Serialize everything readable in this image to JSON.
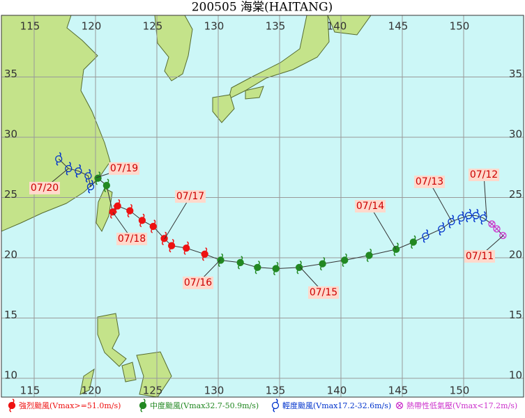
{
  "title": "200505 海棠(HAITANG)",
  "lon_ticks": [
    115,
    120,
    125,
    130,
    135,
    140,
    145,
    150
  ],
  "lat_ticks": [
    10,
    15,
    20,
    25,
    30,
    35
  ],
  "track": [
    {
      "lon": 153.2,
      "lat": 21.85,
      "color": "#cc33cc"
    },
    {
      "lon": 152.7,
      "lat": 22.4,
      "color": "#cc33cc"
    },
    {
      "lon": 152.3,
      "lat": 22.8,
      "color": "#cc33cc"
    },
    {
      "lon": 151.6,
      "lat": 23.3,
      "color": "#0033cc"
    },
    {
      "lon": 151.0,
      "lat": 23.5,
      "color": "#0033cc"
    },
    {
      "lon": 150.4,
      "lat": 23.5,
      "color": "#0033cc"
    },
    {
      "lon": 149.8,
      "lat": 23.3,
      "color": "#0033cc"
    },
    {
      "lon": 149.0,
      "lat": 23.0,
      "color": "#0033cc"
    },
    {
      "lon": 148.2,
      "lat": 22.4,
      "color": "#0033cc"
    },
    {
      "lon": 146.9,
      "lat": 21.8,
      "color": "#0033cc"
    },
    {
      "lon": 145.9,
      "lat": 21.3,
      "color": "#228822"
    },
    {
      "lon": 144.5,
      "lat": 20.7,
      "color": "#228822"
    },
    {
      "lon": 142.3,
      "lat": 20.2,
      "color": "#228822"
    },
    {
      "lon": 140.3,
      "lat": 19.8,
      "color": "#228822"
    },
    {
      "lon": 138.5,
      "lat": 19.5,
      "color": "#228822"
    },
    {
      "lon": 136.6,
      "lat": 19.2,
      "color": "#228822"
    },
    {
      "lon": 134.7,
      "lat": 19.1,
      "color": "#228822"
    },
    {
      "lon": 133.2,
      "lat": 19.2,
      "color": "#228822"
    },
    {
      "lon": 131.8,
      "lat": 19.6,
      "color": "#228822"
    },
    {
      "lon": 130.2,
      "lat": 19.8,
      "color": "#228822"
    },
    {
      "lon": 128.9,
      "lat": 20.3,
      "color": "#ee1111"
    },
    {
      "lon": 127.4,
      "lat": 20.8,
      "color": "#ee1111"
    },
    {
      "lon": 126.2,
      "lat": 21.0,
      "color": "#ee1111"
    },
    {
      "lon": 125.6,
      "lat": 21.6,
      "color": "#ee1111"
    },
    {
      "lon": 124.7,
      "lat": 22.6,
      "color": "#ee1111"
    },
    {
      "lon": 123.8,
      "lat": 23.1,
      "color": "#ee1111"
    },
    {
      "lon": 122.8,
      "lat": 23.9,
      "color": "#ee1111"
    },
    {
      "lon": 121.8,
      "lat": 24.3,
      "color": "#ee1111"
    },
    {
      "lon": 121.4,
      "lat": 23.8,
      "color": "#ee1111"
    },
    {
      "lon": 120.9,
      "lat": 26.0,
      "color": "#228822"
    },
    {
      "lon": 120.2,
      "lat": 26.6,
      "color": "#228822"
    },
    {
      "lon": 119.6,
      "lat": 25.9,
      "color": "#0033cc"
    },
    {
      "lon": 119.4,
      "lat": 26.8,
      "color": "#0033cc"
    },
    {
      "lon": 118.6,
      "lat": 27.2,
      "color": "#0033cc"
    },
    {
      "lon": 117.8,
      "lat": 27.4,
      "color": "#0033cc"
    },
    {
      "lon": 117.0,
      "lat": 28.2,
      "color": "#0033cc"
    }
  ],
  "dates": [
    "07/11",
    "07/12",
    "07/13",
    "07/14",
    "07/15",
    "07/16",
    "07/17",
    "07/18",
    "07/19",
    "07/20"
  ],
  "legend": [
    {
      "label": "強烈颱風(Vmax>=51.0m/s)",
      "color": "#ee1111"
    },
    {
      "label": "中度颱風(Vmax32.7-50.9m/s)",
      "color": "#228822"
    },
    {
      "label": "輕度颱風(Vmax17.2-32.6m/s)",
      "color": "#0033cc"
    },
    {
      "label": "熱帶性低氣壓(Vmax<17.2m/s)",
      "color": "#cc33cc"
    }
  ]
}
